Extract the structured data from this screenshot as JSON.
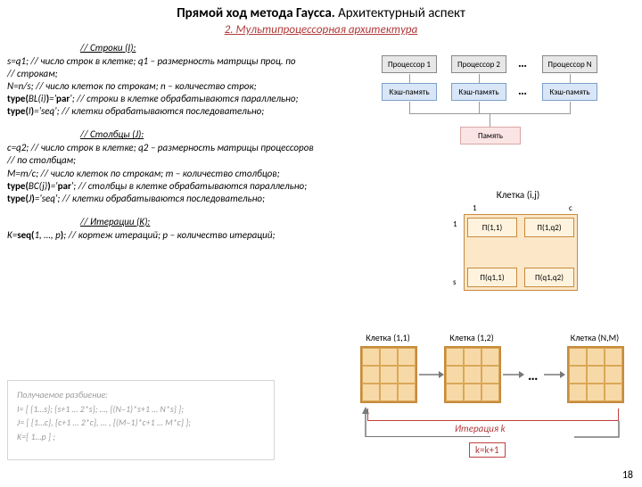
{
  "title_bold": "Прямой ход метода Гаусса.",
  "title_rest": " Архитектурный аспект",
  "subtitle": "2. Мультипроцессорная архитектура",
  "subtitle_color": "#b23a3a",
  "sections": {
    "rows_head": "// Строки (I):",
    "rows_body": "s=q1;   // число строк в клетке; q1 – размерность матрицы проц. по\n                         // строкам;\nN=n/s;                           // число клеток по строкам; n – количество строк;\n<b>type(</b>BL(i)<b>)</b>='<b>par</b>';   // строки в клетке обрабатываются параллельно;\n<b>type(</b>I<b>)</b>='seq';         // клетки обрабатываются последовательно;",
    "cols_head": "// Столбцы (J):",
    "cols_body": "c=q2; // число строк в клетке; q2 – размерность матрицы процессоров\n                        // по столбцам;\nM=m/c;                   // число клеток по строкам; m – количество столбцов;\n<b>type(</b>BC(j)<b>)</b>='<b>par</b>';   // столбцы в клетке обрабатываются параллельно;\n<b>type(</b>J<b>)</b>='seq';         // клетки обрабатываются последовательно;",
    "iter_head": "// Итерации (K):",
    "iter_body": "K=<b>seq(</b>1, …, p<b>)</b>;       // кортеж итераций; p – количество итераций;"
  },
  "proc_diagram": {
    "proc_labels": [
      "Процессор 1",
      "Процессор 2",
      "Процессор N"
    ],
    "cache_label": "Кэш-память",
    "memory_label": "Память",
    "colors": {
      "proc_bg": "#e7e7e7",
      "proc_border": "#888888",
      "cache_bg": "#d9e6f7",
      "cache_border": "#7b9fc9",
      "mem_bg": "#fbe4e4",
      "mem_border": "#d9a6a6",
      "line": "#999999"
    }
  },
  "cell_diagram": {
    "title": "Клетка (i,j)",
    "axis_left_top": "1",
    "axis_left_bottom": "s",
    "axis_top_left": "1",
    "axis_top_right": "c",
    "inner_labels": [
      "П(1,1)",
      "П(1,q2)",
      "П(q1,1)",
      "П(q1,q2)"
    ],
    "colors": {
      "border": "#c78b3d",
      "fill": "#fce7c8",
      "inner_fill": "#fff3de"
    }
  },
  "iter_diagram": {
    "cell_labels": [
      "Клетка (1,1)",
      "Клетка (1,2)",
      "Клетка (N,M)"
    ],
    "iter_label": "Итерация k",
    "increment": "k=k+1",
    "ellipsis": "…",
    "colors": {
      "border": "#c78b3d",
      "fill": "#f7d9a8",
      "bracket": "#c04040",
      "arrow": "#787878"
    }
  },
  "faded_box": {
    "head": "Получаемое разбиение:",
    "lines": [
      "I= [ {1…s}; {s+1 … 2*s}; …, {(N–1)*s+1 … N*s} ];",
      "J= [ {1…c}, {c+1 … 2*c}, … , {(M–1)*c+1 … M*c} ];",
      "K=[ 1…p ] ;"
    ]
  },
  "page_number": "18"
}
